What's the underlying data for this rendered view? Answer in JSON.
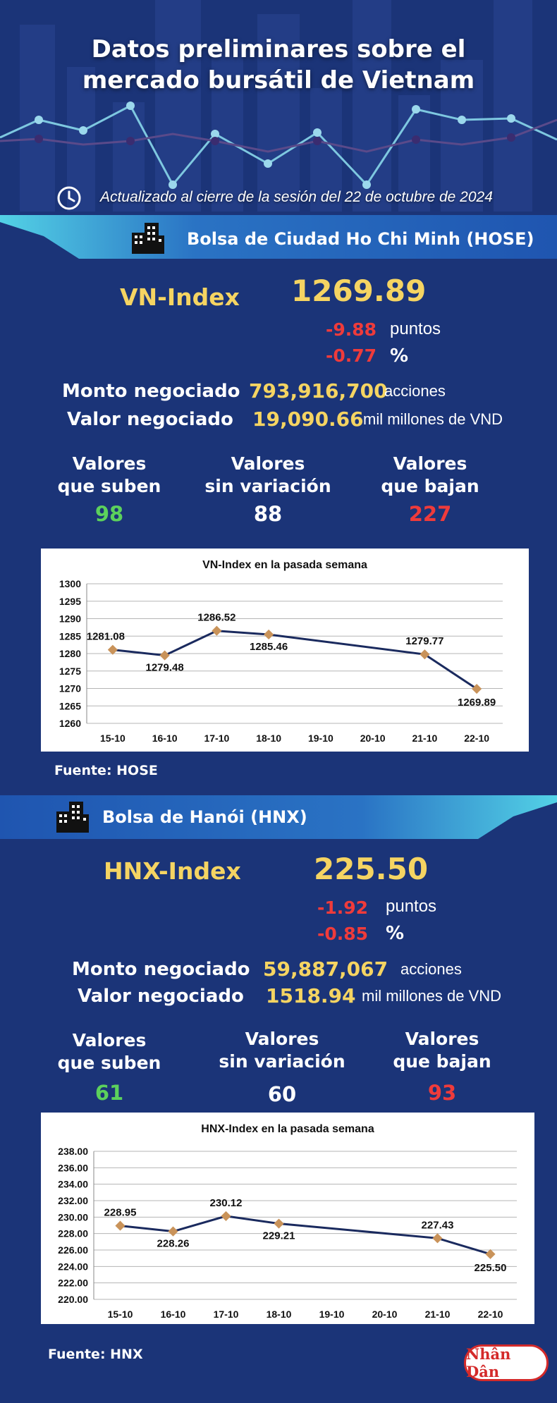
{
  "header": {
    "title_line1": "Datos preliminares sobre el",
    "title_line2": "mercado bursátil de Vietnam",
    "updated": "Actualizado al cierre de la sesión del 22 de octubre de 2024",
    "clock_icon": "clock-icon"
  },
  "hose": {
    "exchange": "Bolsa de Ciudad Ho Chi Minh (HOSE)",
    "index_name": "VN-Index",
    "index_value": "1269.89",
    "change_points": "-9.88",
    "points_label": "puntos",
    "change_percent": "-0.77",
    "percent_label": "%",
    "volume_label": "Monto negociado",
    "volume_value": "793,916,700",
    "volume_unit": "acciones",
    "value_label": "Valor negociado",
    "value_value": "19,090.66",
    "value_unit": "mil millones de VND",
    "up_label_1": "Valores",
    "up_label_2": "que suben",
    "up_value": "98",
    "flat_label_1": "Valores",
    "flat_label_2": "sin variación",
    "flat_value": "88",
    "down_label_1": "Valores",
    "down_label_2": "que bajan",
    "down_value": "227",
    "source": "Fuente: HOSE"
  },
  "hnx": {
    "exchange": "Bolsa de Hanói (HNX)",
    "index_name": "HNX-Index",
    "index_value": "225.50",
    "change_points": "-1.92",
    "points_label": "puntos",
    "change_percent": "-0.85",
    "percent_label": "%",
    "volume_label": "Monto negociado",
    "volume_value": "59,887,067",
    "volume_unit": "acciones",
    "value_label": "Valor negociado",
    "value_value": "1518.94",
    "value_unit": "mil millones de VND",
    "up_label_1": "Valores",
    "up_label_2": "que suben",
    "up_value": "61",
    "flat_label_1": "Valores",
    "flat_label_2": "sin variación",
    "flat_value": "60",
    "down_label_1": "Valores",
    "down_label_2": "que bajan",
    "down_value": "93",
    "source": "Fuente:  HNX"
  },
  "logo_text": "Nhân Dân",
  "colors": {
    "background": "#1b3478",
    "accent_yellow": "#f5d462",
    "up_green": "#5cd15c",
    "down_red": "#ef3b3b",
    "banner_cyan": "#3fc3dc",
    "line_navy": "#1a2a5e",
    "marker": "#c9935a"
  },
  "chart_data": [
    {
      "type": "line",
      "title": "VN-Index en la pasada semana",
      "x": [
        "15-10",
        "16-10",
        "17-10",
        "18-10",
        "19-10",
        "20-10",
        "21-10",
        "22-10"
      ],
      "series": [
        {
          "values": [
            1281.08,
            1279.48,
            1286.52,
            1285.46,
            null,
            null,
            1279.77,
            1269.89
          ],
          "labels": [
            "1281.08",
            "1279.48",
            "1286.52",
            "1285.46",
            "",
            "",
            "1279.77",
            "1269.89"
          ]
        }
      ],
      "yticks": [
        "1300",
        "1295",
        "1290",
        "1285",
        "1280",
        "1275",
        "1270",
        "1265",
        "1260"
      ],
      "ylim": [
        1260,
        1300
      ],
      "grid": true
    },
    {
      "type": "line",
      "title": "HNX-Index en la pasada semana",
      "x": [
        "15-10",
        "16-10",
        "17-10",
        "18-10",
        "19-10",
        "20-10",
        "21-10",
        "22-10"
      ],
      "series": [
        {
          "values": [
            228.95,
            228.26,
            230.12,
            229.21,
            null,
            null,
            227.43,
            225.5
          ],
          "labels": [
            "228.95",
            "228.26",
            "230.12",
            "229.21",
            "",
            "",
            "227.43",
            "225.50"
          ]
        }
      ],
      "yticks": [
        "238.00",
        "236.00",
        "234.00",
        "232.00",
        "230.00",
        "228.00",
        "226.00",
        "224.00",
        "222.00",
        "220.00"
      ],
      "ylim": [
        220,
        238
      ],
      "grid": true
    }
  ]
}
